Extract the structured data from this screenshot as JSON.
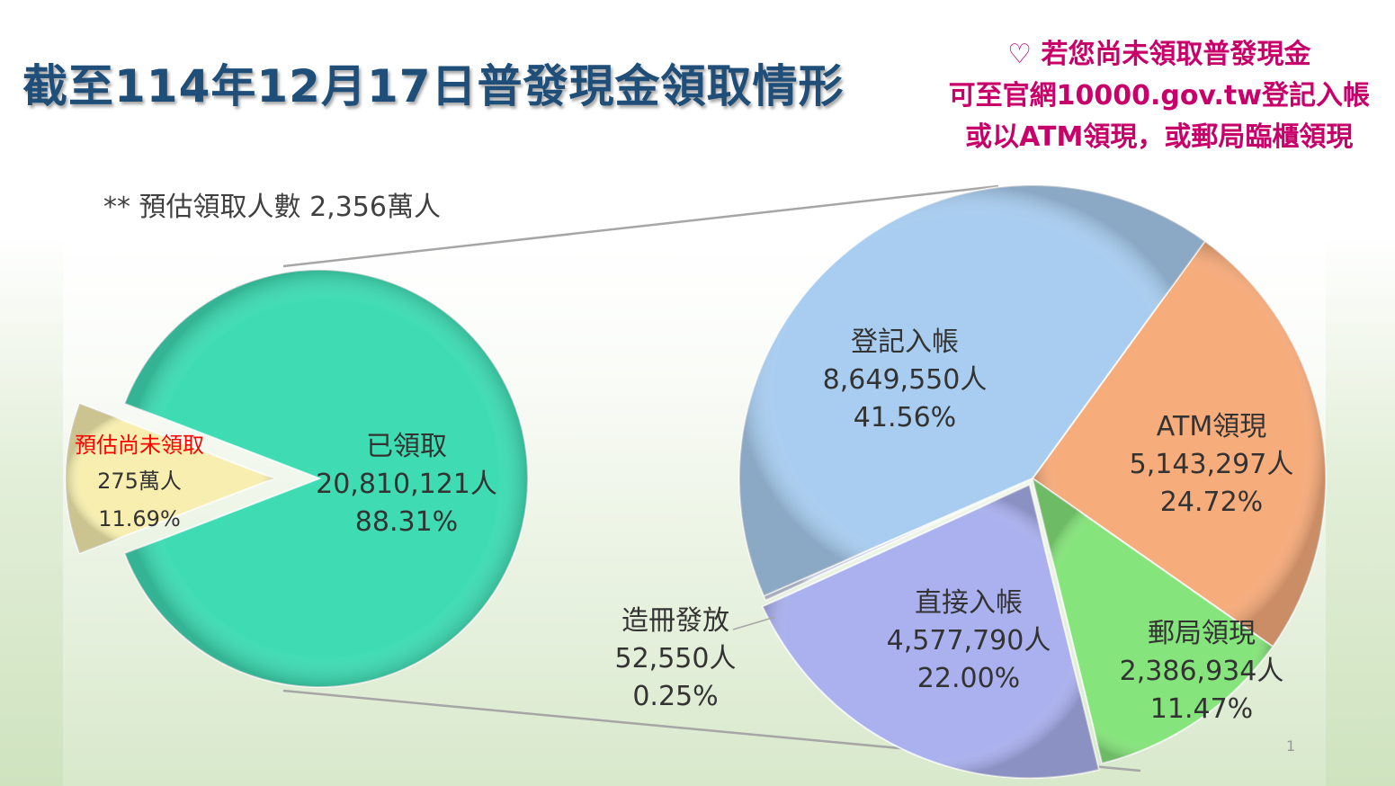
{
  "title": "截至114年12月17日普發現金領取情形",
  "notice": {
    "icon": "heart-outline-icon",
    "lines": [
      "若您尚未領取普發現金",
      "可至官網10000.gov.tw登記入帳",
      "或以ATM領現，或郵局臨櫃領現"
    ],
    "color": "#c8006a"
  },
  "estimate_note": "**  預估領取人數 2,356萬人",
  "page_number": "1",
  "chart_data": {
    "type": "pie-of-pie",
    "main_pie": {
      "slices": [
        {
          "label": "已領取",
          "value": 20810121,
          "value_text": "20,810,121人",
          "percent": 88.31,
          "percent_text": "88.31%",
          "color": "#3fdcb4",
          "exploded_detail": true
        },
        {
          "label": "預估尚未領取",
          "value": 2750000,
          "value_text": "275萬人",
          "percent": 11.69,
          "percent_text": "11.69%",
          "color": "#f7eeb0",
          "label_color": "#ff0000",
          "exploded": true
        }
      ]
    },
    "detail_pie": {
      "slices": [
        {
          "label": "ATM領現",
          "value": 5143297,
          "value_text": "5,143,297人",
          "percent": 24.72,
          "percent_text": "24.72%",
          "color": "#f7ac7c"
        },
        {
          "label": "郵局領現",
          "value": 2386934,
          "value_text": "2,386,934人",
          "percent": 11.47,
          "percent_text": "11.47%",
          "color": "#86e47c"
        },
        {
          "label": "直接入帳",
          "value": 4577790,
          "value_text": "4,577,790人",
          "percent": 22.0,
          "percent_text": "22.00%",
          "color": "#aab1ee"
        },
        {
          "label": "造冊發放",
          "value": 52550,
          "value_text": "52,550人",
          "percent": 0.25,
          "percent_text": "0.25%",
          "color": "#c9d2e6"
        },
        {
          "label": "登記入帳",
          "value": 8649550,
          "value_text": "8,649,550人",
          "percent": 41.56,
          "percent_text": "41.56%",
          "color": "#a9cdf0"
        }
      ]
    }
  }
}
